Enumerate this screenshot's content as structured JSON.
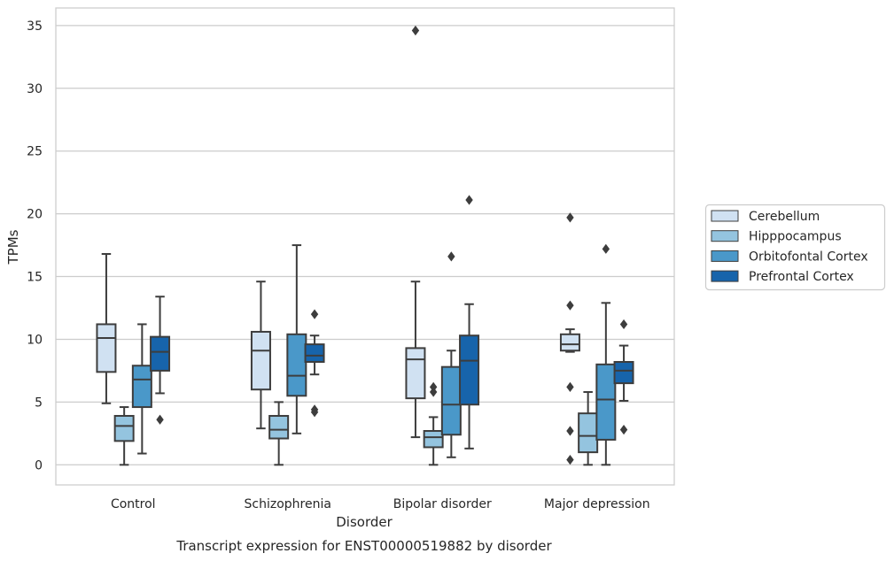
{
  "chart_data": {
    "type": "boxplot",
    "xlabel": "Disorder",
    "ylabel": "TPMs",
    "caption": "Transcript expression for ENST00000519882 by disorder",
    "categories": [
      "Control",
      "Schizophrenia",
      "Bipolar disorder",
      "Major depression"
    ],
    "ylim": [
      -1.6,
      36.4
    ],
    "yticks": [
      0,
      5,
      10,
      15,
      20,
      25,
      30,
      35
    ],
    "grid": "horizontal",
    "legend_position": "right",
    "series": [
      {
        "name": "Cerebellum",
        "color": "#d0e1f2",
        "boxes": [
          {
            "whislo": 4.9,
            "q1": 7.4,
            "med": 10.1,
            "q3": 11.2,
            "whishi": 16.8,
            "fliers": []
          },
          {
            "whislo": 2.9,
            "q1": 6.0,
            "med": 9.1,
            "q3": 10.6,
            "whishi": 14.6,
            "fliers": []
          },
          {
            "whislo": 2.2,
            "q1": 5.3,
            "med": 8.4,
            "q3": 9.3,
            "whishi": 14.6,
            "fliers": [
              34.6
            ]
          },
          {
            "whislo": 9.0,
            "q1": 9.1,
            "med": 9.6,
            "q3": 10.4,
            "whishi": 10.8,
            "fliers": [
              19.7,
              12.7,
              6.2,
              2.7,
              0.4
            ]
          }
        ]
      },
      {
        "name": "Hipppocampus",
        "color": "#94c4df",
        "boxes": [
          {
            "whislo": 0.0,
            "q1": 1.9,
            "med": 3.1,
            "q3": 3.9,
            "whishi": 4.6,
            "fliers": []
          },
          {
            "whislo": 0.0,
            "q1": 2.1,
            "med": 2.8,
            "q3": 3.9,
            "whishi": 5.0,
            "fliers": []
          },
          {
            "whislo": 0.0,
            "q1": 1.4,
            "med": 2.2,
            "q3": 2.7,
            "whishi": 3.8,
            "fliers": [
              6.2,
              5.8
            ]
          },
          {
            "whislo": 0.0,
            "q1": 1.0,
            "med": 2.3,
            "q3": 4.1,
            "whishi": 5.8,
            "fliers": []
          }
        ]
      },
      {
        "name": "Orbitofontal Cortex",
        "color": "#4a98c9",
        "boxes": [
          {
            "whislo": 0.9,
            "q1": 4.6,
            "med": 6.8,
            "q3": 7.9,
            "whishi": 11.2,
            "fliers": []
          },
          {
            "whislo": 2.5,
            "q1": 5.5,
            "med": 7.1,
            "q3": 10.4,
            "whishi": 17.5,
            "fliers": []
          },
          {
            "whislo": 0.6,
            "q1": 2.4,
            "med": 4.8,
            "q3": 7.8,
            "whishi": 9.1,
            "fliers": [
              16.6
            ]
          },
          {
            "whislo": 0.0,
            "q1": 2.0,
            "med": 5.2,
            "q3": 8.0,
            "whishi": 12.9,
            "fliers": [
              17.2
            ]
          }
        ]
      },
      {
        "name": "Prefrontal Cortex",
        "color": "#1764ab",
        "boxes": [
          {
            "whislo": 5.7,
            "q1": 7.5,
            "med": 9.0,
            "q3": 10.2,
            "whishi": 13.4,
            "fliers": [
              3.6
            ]
          },
          {
            "whislo": 7.2,
            "q1": 8.2,
            "med": 8.7,
            "q3": 9.6,
            "whishi": 10.3,
            "fliers": [
              12.0,
              4.4,
              4.2
            ]
          },
          {
            "whislo": 1.3,
            "q1": 4.8,
            "med": 8.3,
            "q3": 10.3,
            "whishi": 12.8,
            "fliers": [
              21.1
            ]
          },
          {
            "whislo": 5.1,
            "q1": 6.5,
            "med": 7.5,
            "q3": 8.2,
            "whishi": 9.5,
            "fliers": [
              11.2,
              2.8
            ]
          }
        ]
      }
    ]
  }
}
